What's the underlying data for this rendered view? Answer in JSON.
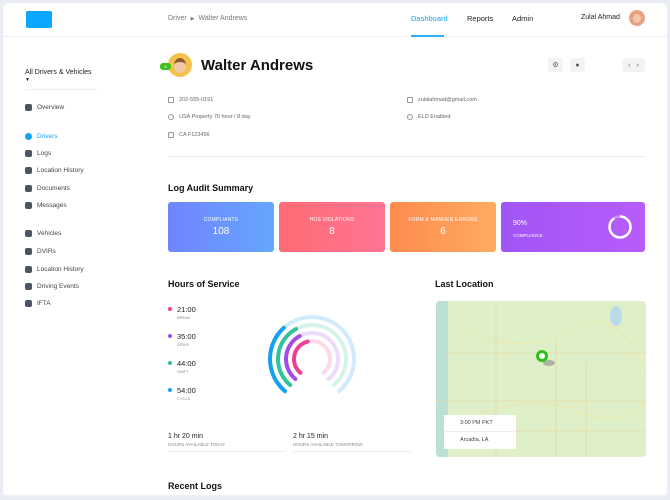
{
  "header": {
    "breadcrumb": [
      "Driver",
      "Walter Andrews"
    ],
    "nav": [
      {
        "label": "Dashboard",
        "active": true
      },
      {
        "label": "Reports"
      },
      {
        "label": "Admin"
      }
    ],
    "user_name": "Zulal Ahmad",
    "brand_color": "#0aa6ff"
  },
  "sidebar": {
    "filter": "All Drivers & Vehicles",
    "items": [
      {
        "label": "Overview",
        "icon": "dashboard-icon"
      },
      {
        "label": "Drivers",
        "icon": "steering-wheel-icon",
        "active": true
      },
      {
        "label": "Logs",
        "icon": "book-icon"
      },
      {
        "label": "Location History",
        "icon": "location-icon"
      },
      {
        "label": "Documents",
        "icon": "document-icon"
      },
      {
        "label": "Messages",
        "icon": "chat-icon"
      },
      {
        "label": "Vehicles",
        "icon": "truck-icon"
      },
      {
        "label": "DVIRs",
        "icon": "wrench-icon"
      },
      {
        "label": "Location History",
        "icon": "location-icon"
      },
      {
        "label": "Driving Events",
        "icon": "events-icon"
      },
      {
        "label": "IFTA",
        "icon": "fuel-icon"
      }
    ]
  },
  "driver": {
    "name": "Walter Andrews",
    "status_badge": "8",
    "phone": "202-555-0191",
    "cycle": "USA Property 70 hour / 8 day",
    "license": "CA F123456",
    "email": "zulalahmad@gmail.com",
    "eld": "ELD Enabled"
  },
  "audit": {
    "title": "Log Audit Summary",
    "cards": [
      {
        "label": "COMPLIANTS",
        "value": "108",
        "color": "#6f8bff"
      },
      {
        "label": "HOS VIOLATIONS",
        "value": "8",
        "color": "#ff6b7a"
      },
      {
        "label": "FORM & MANNER ERRORS",
        "value": "6",
        "color": "#ff9a5a"
      }
    ],
    "compliance": {
      "value": "90%",
      "label": "COMPLIANCE",
      "percent": 90
    }
  },
  "hos": {
    "title": "Hours of Service",
    "items": [
      {
        "value": "21:00",
        "label": "BREAK",
        "color": "#ec3f96",
        "fraction": 0.45
      },
      {
        "value": "35:00",
        "label": "DRIVE",
        "color": "#a24ee6",
        "fraction": 0.4
      },
      {
        "value": "44:00",
        "label": "SHIFT",
        "color": "#32c39a",
        "fraction": 0.4
      },
      {
        "value": "54:00",
        "label": "CYCLE",
        "color": "#14a2f0",
        "fraction": 0.35
      }
    ],
    "today": {
      "value": "1 hr 20 min",
      "label": "HOURS AVAILABLE TODAY"
    },
    "tomorrow": {
      "value": "2 hr 15 min",
      "label": "HOURS AVAILABLE TOMORROW"
    }
  },
  "location": {
    "title": "Last Location",
    "time": "3:00 PM PKT",
    "place": "Arcadia, LA"
  },
  "recent_logs": {
    "title": "Recent Logs"
  }
}
